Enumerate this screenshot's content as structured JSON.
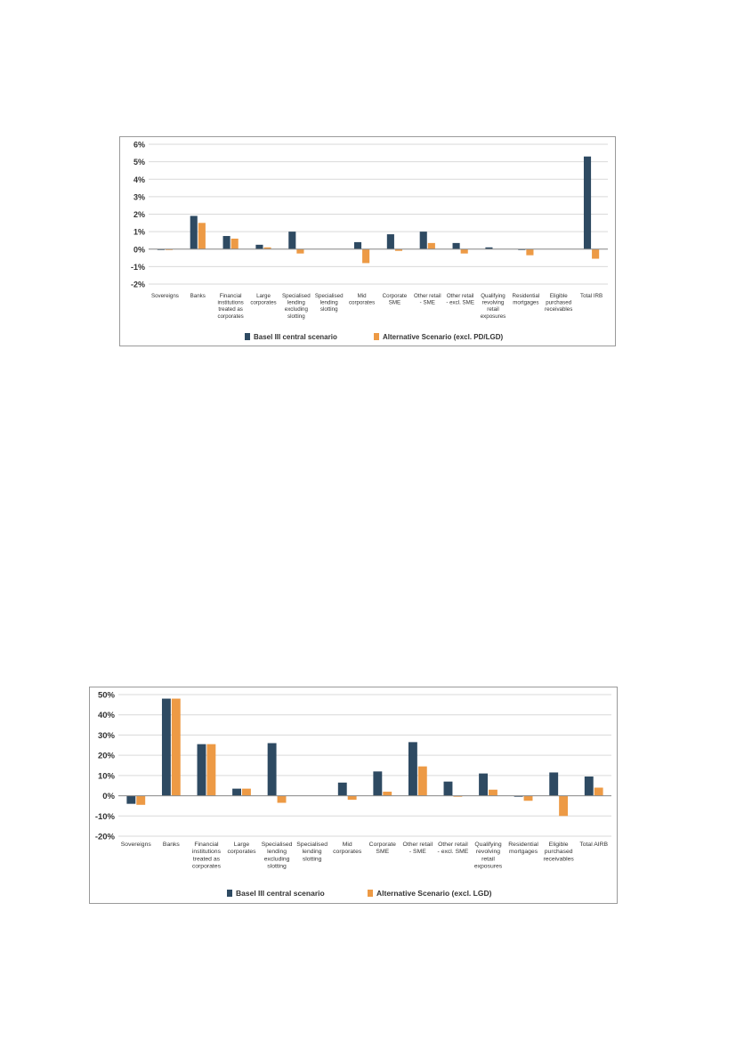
{
  "colors": {
    "series1": "#2E4A62",
    "series2": "#ED9A45",
    "grid": "#d9d9d9",
    "axis": "#8c8c8c"
  },
  "chart_data": [
    {
      "type": "bar",
      "categories": [
        [
          "Sovereigns"
        ],
        [
          "Banks"
        ],
        [
          "Financial",
          "institutions",
          "treated as",
          "corporates"
        ],
        [
          "Large",
          "corporates"
        ],
        [
          "Specialised",
          "lending",
          "excluding",
          "slotting"
        ],
        [
          "Specialised",
          "lending",
          "slotting"
        ],
        [
          "Mid",
          "corporates"
        ],
        [
          "Corporate",
          "SME"
        ],
        [
          "Other retail",
          "- SME"
        ],
        [
          "Other retail",
          "- excl. SME"
        ],
        [
          "Qualifying",
          "revolving",
          "retail",
          "exposures"
        ],
        [
          "Residential",
          "mortgages"
        ],
        [
          "Eligible",
          "purchased",
          "receivables"
        ],
        [
          "Total IRB"
        ]
      ],
      "series": [
        {
          "name": "Basel III central scenario",
          "values": [
            -0.05,
            1.9,
            0.75,
            0.25,
            1.0,
            0,
            0.4,
            0.85,
            1.0,
            0.35,
            0.1,
            -0.05,
            0,
            5.3
          ]
        },
        {
          "name": "Alternative Scenario (excl. PD/LGD)",
          "values": [
            -0.05,
            1.5,
            0.6,
            0.1,
            -0.25,
            0,
            -0.8,
            -0.1,
            0.35,
            -0.25,
            0,
            -0.35,
            0,
            -0.55
          ]
        }
      ],
      "yticks": [
        "6%",
        "5%",
        "4%",
        "3%",
        "2%",
        "1%",
        "0%",
        "-1%",
        "-2%"
      ],
      "ylim": [
        -2,
        6
      ],
      "grid": true,
      "legend": "bottom"
    },
    {
      "type": "bar",
      "categories": [
        [
          "Sovereigns"
        ],
        [
          "Banks"
        ],
        [
          "Financial",
          "institutions",
          "treated as",
          "corporates"
        ],
        [
          "Large",
          "corporates"
        ],
        [
          "Specialised",
          "lending",
          "excluding",
          "slotting"
        ],
        [
          "Specialised",
          "lending",
          "slotting"
        ],
        [
          "Mid",
          "corporates"
        ],
        [
          "Corporate",
          "SME"
        ],
        [
          "Other retail",
          "- SME"
        ],
        [
          "Other retail",
          "- excl. SME"
        ],
        [
          "Qualifying",
          "revolving",
          "retail",
          "exposures"
        ],
        [
          "Residential",
          "mortgages"
        ],
        [
          "Eligible",
          "purchased",
          "receivables"
        ],
        [
          "Total AIRB"
        ]
      ],
      "series": [
        {
          "name": "Basel III central scenario",
          "values": [
            -4,
            48,
            25.5,
            3.5,
            26,
            0,
            6.5,
            12,
            26.5,
            7,
            11,
            -0.5,
            11.5,
            9.5
          ]
        },
        {
          "name": "Alternative Scenario (excl. LGD)",
          "values": [
            -4.5,
            48,
            25.5,
            3.5,
            -3.5,
            0,
            -2,
            2,
            14.5,
            -0.5,
            3,
            -2.5,
            -10,
            4
          ]
        }
      ],
      "yticks": [
        "50%",
        "40%",
        "30%",
        "20%",
        "10%",
        "0%",
        "-10%",
        "-20%"
      ],
      "ylim": [
        -20,
        50
      ],
      "grid": true,
      "legend": "bottom"
    }
  ]
}
